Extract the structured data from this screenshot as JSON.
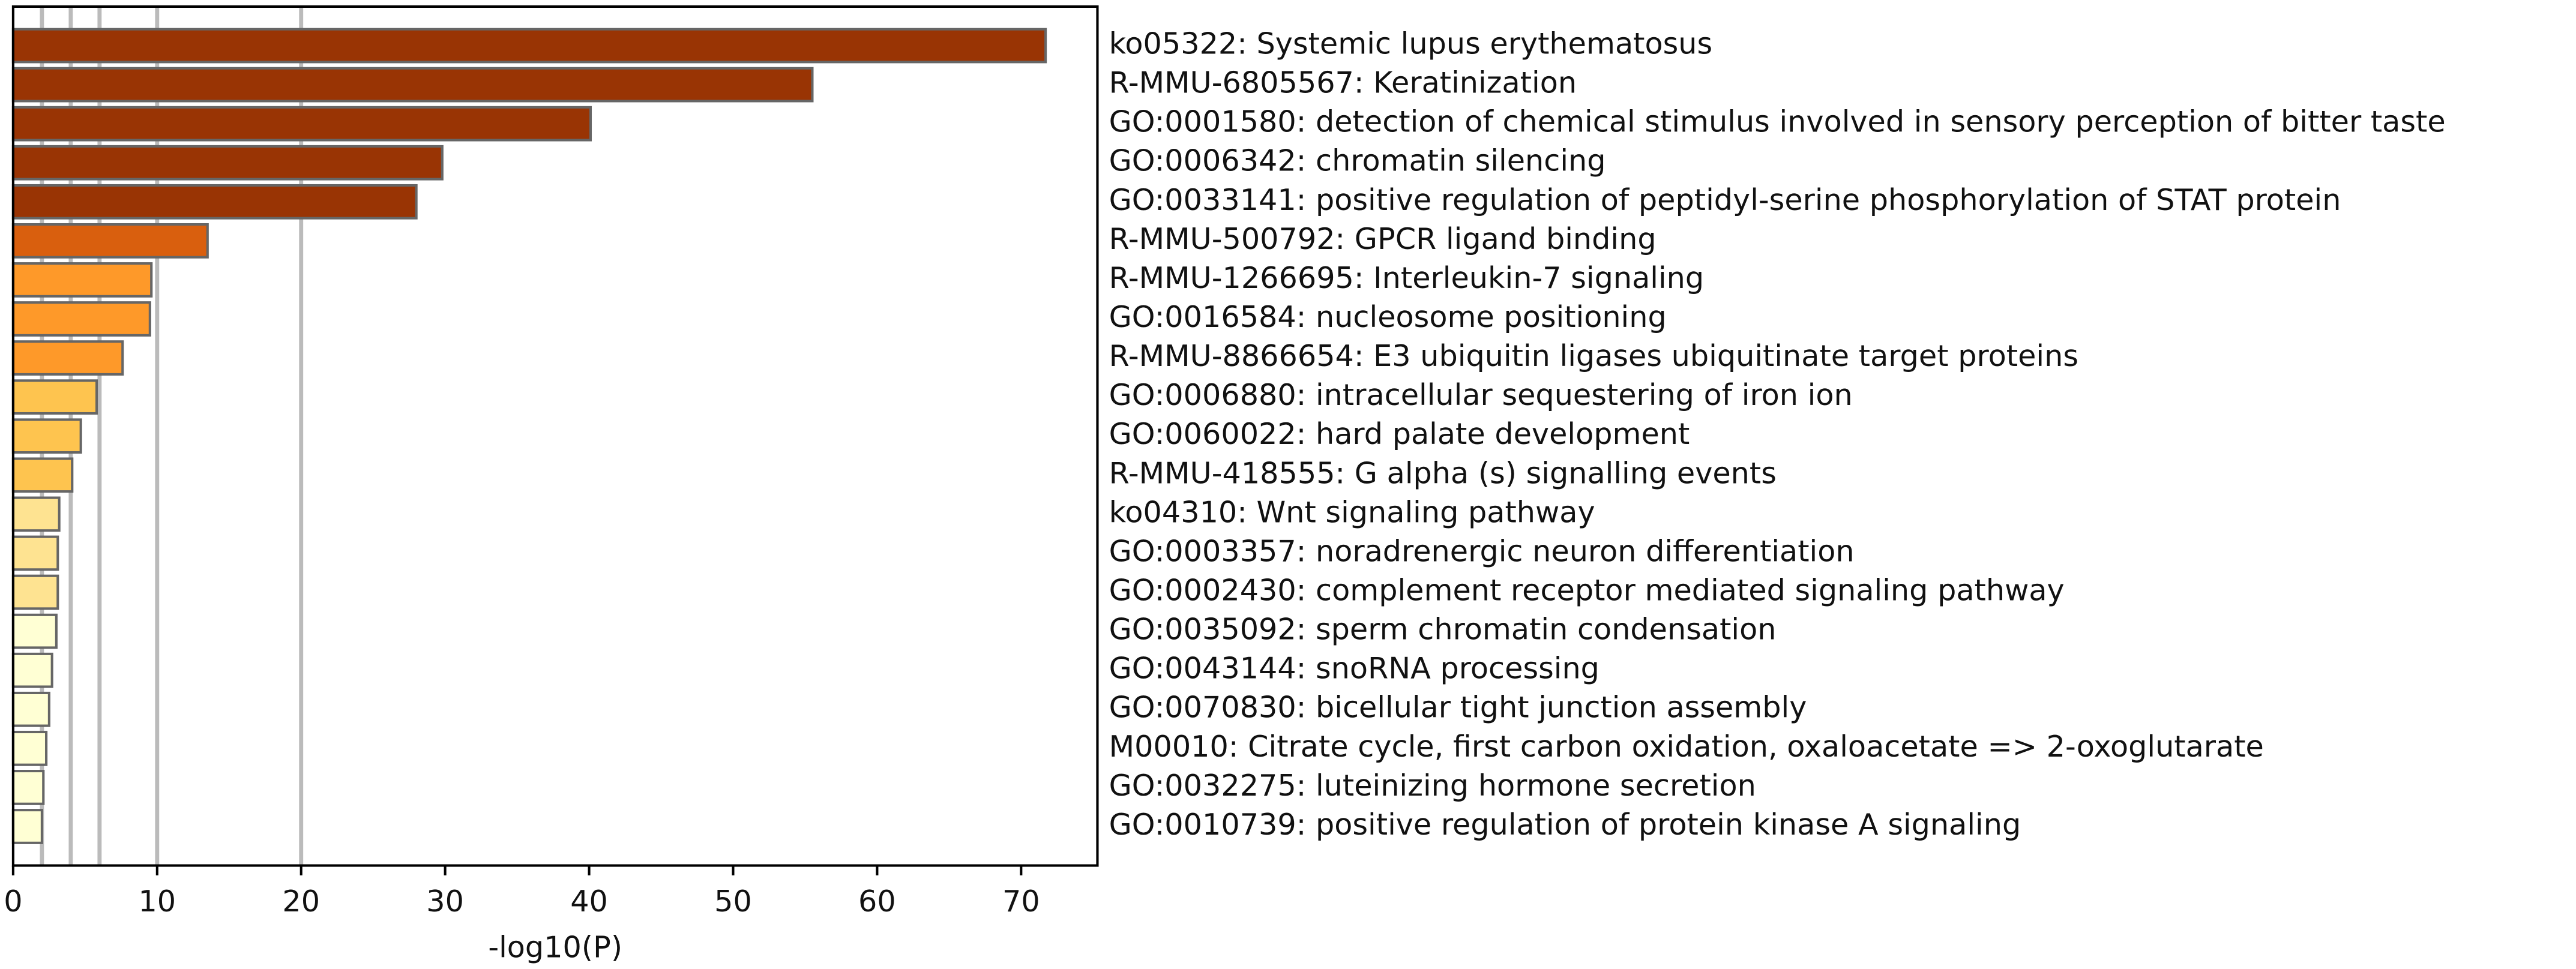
{
  "chart_data": {
    "type": "barh",
    "xlabel": "-log10(P)",
    "categories": [
      "ko05322: Systemic lupus erythematosus",
      "R-MMU-6805567: Keratinization",
      "GO:0001580: detection of chemical stimulus involved in sensory perception of bitter taste",
      "GO:0006342: chromatin silencing",
      "GO:0033141: positive regulation of peptidyl-serine phosphorylation of STAT protein",
      "R-MMU-500792: GPCR ligand binding",
      "R-MMU-1266695: Interleukin-7 signaling",
      "GO:0016584: nucleosome positioning",
      "R-MMU-8866654: E3 ubiquitin ligases ubiquitinate target proteins",
      "GO:0006880: intracellular sequestering of iron ion",
      "GO:0060022: hard palate development",
      "R-MMU-418555: G alpha (s) signalling events",
      "ko04310: Wnt signaling pathway",
      "GO:0003357: noradrenergic neuron differentiation",
      "GO:0002430: complement receptor mediated signaling pathway",
      "GO:0035092: sperm chromatin condensation",
      "GO:0043144: snoRNA processing",
      "GO:0070830: bicellular tight junction assembly",
      "M00010: Citrate cycle, first carbon oxidation, oxaloacetate => 2-oxoglutarate",
      "GO:0032275: luteinizing hormone secretion",
      "GO:0010739: positive regulation of protein kinase A signaling"
    ],
    "values": [
      71.7,
      55.5,
      40.1,
      29.8,
      28.0,
      13.5,
      9.6,
      9.5,
      7.6,
      5.8,
      4.7,
      4.1,
      3.2,
      3.1,
      3.1,
      3.0,
      2.7,
      2.5,
      2.3,
      2.1,
      2.0
    ],
    "colors": [
      "#993404",
      "#993404",
      "#993404",
      "#993404",
      "#993404",
      "#d95f0e",
      "#fe9929",
      "#fe9929",
      "#fe9929",
      "#fec44f",
      "#fec44f",
      "#fec44f",
      "#fee391",
      "#fee391",
      "#fee391",
      "#ffffd4",
      "#ffffd4",
      "#ffffd4",
      "#ffffd4",
      "#ffffd4",
      "#ffffd4"
    ],
    "xlim": [
      0,
      75.3
    ],
    "xticks": [
      0,
      10,
      20,
      30,
      40,
      50,
      60,
      70
    ],
    "reference_lines": [
      2,
      4,
      6,
      10,
      20
    ]
  }
}
